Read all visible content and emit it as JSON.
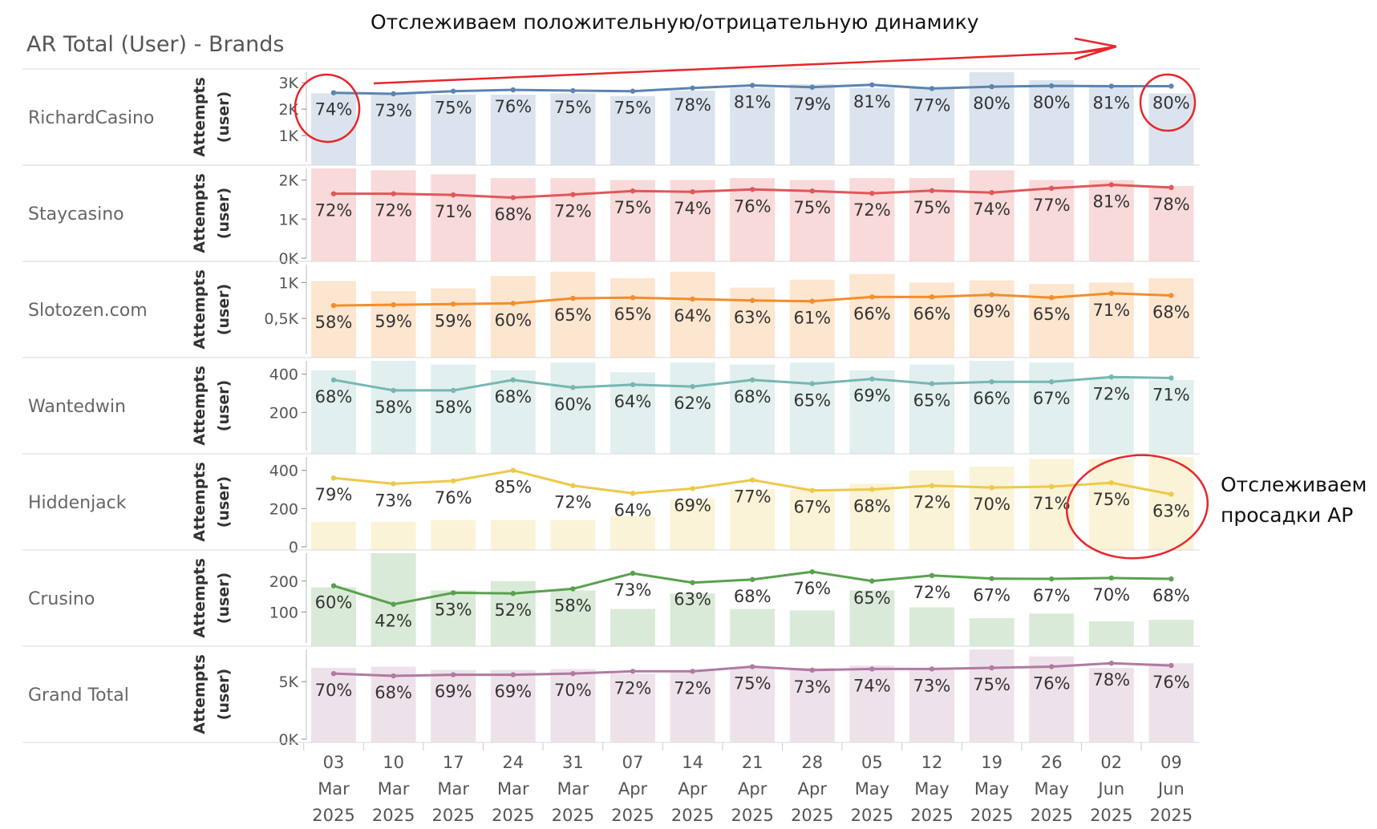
{
  "title": "AR Total (User) - Brands",
  "annotations": {
    "top": "Отслеживаем положительную/отрицательную динамику",
    "right_line1": "Отслеживаем",
    "right_line2": "просадки АР"
  },
  "colors": {
    "RichardCasino": "#5b84b1",
    "Staycasino": "#e15759",
    "Slotozen.com": "#f28e2b",
    "Wantedwin": "#76b7b2",
    "Hiddenjack": "#edc948",
    "Crusino": "#59a14f",
    "Grand Total": "#b07aa1",
    "annotation_red": "#e8262b",
    "divider": "#d9d9d9"
  },
  "chart_data": {
    "type": "bar",
    "title": "AR Total (User) - Brands",
    "ylabel": "Attempts (user)",
    "categories": [
      [
        "03",
        "Mar",
        "2025"
      ],
      [
        "10",
        "Mar",
        "2025"
      ],
      [
        "17",
        "Mar",
        "2025"
      ],
      [
        "24",
        "Mar",
        "2025"
      ],
      [
        "31",
        "Mar",
        "2025"
      ],
      [
        "07",
        "Apr",
        "2025"
      ],
      [
        "14",
        "Apr",
        "2025"
      ],
      [
        "21",
        "Apr",
        "2025"
      ],
      [
        "28",
        "Apr",
        "2025"
      ],
      [
        "05",
        "May",
        "2025"
      ],
      [
        "12",
        "May",
        "2025"
      ],
      [
        "19",
        "May",
        "2025"
      ],
      [
        "26",
        "May",
        "2025"
      ],
      [
        "02",
        "Jun",
        "2025"
      ],
      [
        "09",
        "Jun",
        "2025"
      ]
    ],
    "panels": [
      {
        "name": "RichardCasino",
        "ylim": [
          0,
          3400
        ],
        "ticks": [
          {
            "v": 3000,
            "label": "3K"
          },
          {
            "v": 2000,
            "label": "2K"
          },
          {
            "v": 1000,
            "label": "1K"
          }
        ],
        "bars": [
          2600,
          2600,
          2550,
          2550,
          2600,
          2500,
          2700,
          2800,
          2950,
          2800,
          2800,
          3400,
          3100,
          2900,
          2600
        ],
        "line": [
          2620,
          2580,
          2680,
          2730,
          2700,
          2680,
          2800,
          2900,
          2830,
          2920,
          2780,
          2850,
          2880,
          2870,
          2870
        ],
        "ar": [
          "74%",
          "73%",
          "75%",
          "76%",
          "75%",
          "75%",
          "78%",
          "81%",
          "79%",
          "81%",
          "77%",
          "80%",
          "80%",
          "81%",
          "80%"
        ]
      },
      {
        "name": "Staycasino",
        "ylim": [
          0,
          2300
        ],
        "ticks": [
          {
            "v": 2000,
            "label": "2K"
          },
          {
            "v": 1000,
            "label": "1K"
          },
          {
            "v": 0,
            "label": "0K"
          }
        ],
        "bars": [
          2300,
          2250,
          2150,
          2050,
          2050,
          2000,
          2000,
          2050,
          2000,
          2050,
          2050,
          2250,
          2000,
          2000,
          1850
        ],
        "line": [
          1650,
          1650,
          1620,
          1550,
          1630,
          1720,
          1700,
          1760,
          1720,
          1660,
          1730,
          1680,
          1790,
          1880,
          1810
        ],
        "ar": [
          "72%",
          "72%",
          "71%",
          "68%",
          "72%",
          "75%",
          "74%",
          "76%",
          "75%",
          "72%",
          "75%",
          "74%",
          "77%",
          "81%",
          "78%"
        ]
      },
      {
        "name": "Slotozen.com",
        "ylim": [
          0,
          1250
        ],
        "ticks": [
          {
            "v": 1000,
            "label": "1K"
          },
          {
            "v": 500,
            "label": "0,5K"
          }
        ],
        "bars": [
          1020,
          880,
          920,
          1090,
          1150,
          1060,
          1150,
          930,
          1040,
          1120,
          1000,
          1030,
          980,
          1000,
          1060
        ],
        "line": [
          680,
          690,
          700,
          710,
          780,
          790,
          770,
          750,
          740,
          800,
          800,
          830,
          790,
          850,
          820
        ],
        "ar": [
          "58%",
          "59%",
          "59%",
          "60%",
          "65%",
          "65%",
          "64%",
          "63%",
          "61%",
          "66%",
          "66%",
          "69%",
          "65%",
          "71%",
          "68%"
        ]
      },
      {
        "name": "Wantedwin",
        "ylim": [
          0,
          470
        ],
        "ticks": [
          {
            "v": 400,
            "label": "400"
          },
          {
            "v": 200,
            "label": "200"
          }
        ],
        "bars": [
          420,
          470,
          450,
          420,
          460,
          410,
          460,
          450,
          460,
          420,
          450,
          470,
          460,
          380,
          370
        ],
        "line": [
          370,
          315,
          315,
          370,
          330,
          345,
          335,
          370,
          350,
          375,
          350,
          360,
          360,
          385,
          380
        ],
        "ar": [
          "68%",
          "58%",
          "58%",
          "68%",
          "60%",
          "64%",
          "62%",
          "68%",
          "65%",
          "69%",
          "65%",
          "66%",
          "67%",
          "72%",
          "71%"
        ]
      },
      {
        "name": "Hiddenjack",
        "ylim": [
          0,
          470
        ],
        "ticks": [
          {
            "v": 400,
            "label": "400"
          },
          {
            "v": 200,
            "label": "200"
          },
          {
            "v": 0,
            "label": "0"
          }
        ],
        "bars": [
          130,
          130,
          140,
          140,
          140,
          160,
          250,
          300,
          300,
          330,
          400,
          420,
          460,
          460,
          470
        ],
        "line": [
          360,
          330,
          345,
          400,
          320,
          280,
          305,
          350,
          295,
          300,
          320,
          310,
          315,
          335,
          275
        ],
        "ar": [
          "79%",
          "73%",
          "76%",
          "85%",
          "72%",
          "64%",
          "69%",
          "77%",
          "67%",
          "68%",
          "72%",
          "70%",
          "71%",
          "75%",
          "63%"
        ]
      },
      {
        "name": "Crusino",
        "ylim": [
          0,
          290
        ],
        "ticks": [
          {
            "v": 200,
            "label": "200"
          },
          {
            "v": 100,
            "label": "100"
          }
        ],
        "bars": [
          180,
          290,
          170,
          200,
          170,
          110,
          160,
          110,
          105,
          170,
          115,
          80,
          95,
          70,
          75
        ],
        "line": [
          185,
          125,
          162,
          160,
          175,
          225,
          195,
          205,
          230,
          200,
          218,
          208,
          207,
          210,
          207
        ],
        "ar": [
          "60%",
          "42%",
          "53%",
          "52%",
          "58%",
          "73%",
          "63%",
          "68%",
          "76%",
          "65%",
          "72%",
          "67%",
          "67%",
          "70%",
          "68%"
        ]
      },
      {
        "name": "Grand Total",
        "ylim": [
          0,
          7800
        ],
        "ticks": [
          {
            "v": 5000,
            "label": "5K"
          },
          {
            "v": 0,
            "label": "0K"
          }
        ],
        "bars": [
          6200,
          6300,
          6000,
          6000,
          6100,
          5700,
          6000,
          6200,
          6200,
          6400,
          6200,
          7800,
          7200,
          6200,
          6600
        ],
        "line": [
          5700,
          5500,
          5600,
          5600,
          5700,
          5900,
          5900,
          6300,
          6000,
          6100,
          6100,
          6200,
          6300,
          6600,
          6400
        ],
        "ar": [
          "70%",
          "68%",
          "69%",
          "69%",
          "70%",
          "72%",
          "72%",
          "75%",
          "73%",
          "74%",
          "73%",
          "75%",
          "76%",
          "78%",
          "76%"
        ]
      }
    ]
  }
}
